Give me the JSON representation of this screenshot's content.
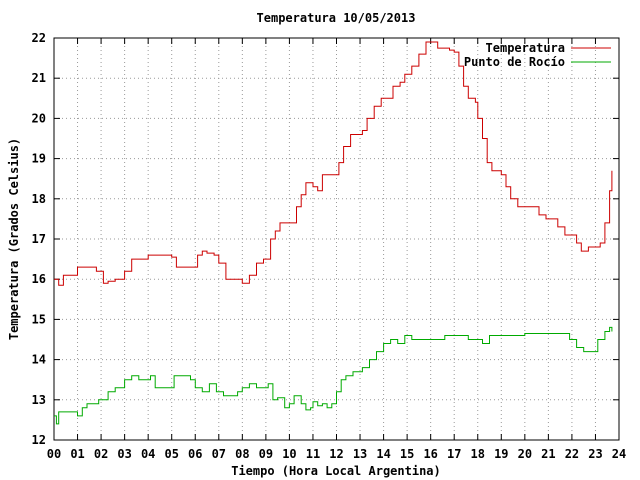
{
  "chart_data": {
    "type": "line",
    "title": "Temperatura 10/05/2013",
    "xlabel": "Tiempo (Hora Local Argentina)",
    "ylabel": "Temperatura (Grados Celsius)",
    "xlim": [
      0,
      24
    ],
    "ylim": [
      12,
      22
    ],
    "x_ticks": [
      "00",
      "01",
      "02",
      "03",
      "04",
      "05",
      "06",
      "07",
      "08",
      "09",
      "10",
      "11",
      "12",
      "13",
      "14",
      "15",
      "16",
      "17",
      "18",
      "19",
      "20",
      "21",
      "22",
      "23",
      "24"
    ],
    "y_ticks": [
      "12",
      "13",
      "14",
      "15",
      "16",
      "17",
      "18",
      "19",
      "20",
      "21",
      "22"
    ],
    "grid": true,
    "legend_position": "top-right",
    "series": [
      {
        "name": "Temperatura",
        "color": "#cc0000",
        "points": [
          [
            0.0,
            16.0
          ],
          [
            0.2,
            15.85
          ],
          [
            0.4,
            16.1
          ],
          [
            0.7,
            16.1
          ],
          [
            1.0,
            16.3
          ],
          [
            1.4,
            16.3
          ],
          [
            1.8,
            16.2
          ],
          [
            2.1,
            15.9
          ],
          [
            2.3,
            15.95
          ],
          [
            2.6,
            16.0
          ],
          [
            3.0,
            16.2
          ],
          [
            3.3,
            16.5
          ],
          [
            3.7,
            16.5
          ],
          [
            4.0,
            16.6
          ],
          [
            4.5,
            16.6
          ],
          [
            5.0,
            16.55
          ],
          [
            5.2,
            16.3
          ],
          [
            5.6,
            16.3
          ],
          [
            5.9,
            16.3
          ],
          [
            6.1,
            16.6
          ],
          [
            6.3,
            16.7
          ],
          [
            6.5,
            16.65
          ],
          [
            6.8,
            16.6
          ],
          [
            7.0,
            16.4
          ],
          [
            7.3,
            16.0
          ],
          [
            7.7,
            16.0
          ],
          [
            8.0,
            15.9
          ],
          [
            8.3,
            16.1
          ],
          [
            8.6,
            16.4
          ],
          [
            8.9,
            16.5
          ],
          [
            9.2,
            17.0
          ],
          [
            9.4,
            17.2
          ],
          [
            9.6,
            17.4
          ],
          [
            10.0,
            17.4
          ],
          [
            10.3,
            17.8
          ],
          [
            10.5,
            18.1
          ],
          [
            10.7,
            18.4
          ],
          [
            11.0,
            18.3
          ],
          [
            11.2,
            18.2
          ],
          [
            11.4,
            18.6
          ],
          [
            11.7,
            18.6
          ],
          [
            11.9,
            18.6
          ],
          [
            12.1,
            18.9
          ],
          [
            12.3,
            19.3
          ],
          [
            12.6,
            19.6
          ],
          [
            12.9,
            19.6
          ],
          [
            13.1,
            19.7
          ],
          [
            13.3,
            20.0
          ],
          [
            13.6,
            20.3
          ],
          [
            13.9,
            20.5
          ],
          [
            14.2,
            20.5
          ],
          [
            14.4,
            20.8
          ],
          [
            14.7,
            20.9
          ],
          [
            14.9,
            21.1
          ],
          [
            15.2,
            21.3
          ],
          [
            15.5,
            21.6
          ],
          [
            15.8,
            21.9
          ],
          [
            16.1,
            21.9
          ],
          [
            16.3,
            21.75
          ],
          [
            16.5,
            21.75
          ],
          [
            16.8,
            21.7
          ],
          [
            17.0,
            21.65
          ],
          [
            17.2,
            21.3
          ],
          [
            17.4,
            20.8
          ],
          [
            17.6,
            20.5
          ],
          [
            17.9,
            20.4
          ],
          [
            18.0,
            20.0
          ],
          [
            18.2,
            19.5
          ],
          [
            18.4,
            18.9
          ],
          [
            18.6,
            18.7
          ],
          [
            19.0,
            18.6
          ],
          [
            19.2,
            18.3
          ],
          [
            19.4,
            18.0
          ],
          [
            19.7,
            17.8
          ],
          [
            20.0,
            17.8
          ],
          [
            20.3,
            17.8
          ],
          [
            20.6,
            17.6
          ],
          [
            20.9,
            17.5
          ],
          [
            21.1,
            17.5
          ],
          [
            21.4,
            17.3
          ],
          [
            21.7,
            17.1
          ],
          [
            22.0,
            17.1
          ],
          [
            22.2,
            16.9
          ],
          [
            22.4,
            16.7
          ],
          [
            22.7,
            16.8
          ],
          [
            22.9,
            16.8
          ],
          [
            23.2,
            16.9
          ],
          [
            23.4,
            17.4
          ],
          [
            23.6,
            18.2
          ],
          [
            23.7,
            18.7
          ]
        ]
      },
      {
        "name": "Punto de Rocío",
        "color": "#00aa00",
        "points": [
          [
            0.0,
            12.6
          ],
          [
            0.1,
            12.4
          ],
          [
            0.2,
            12.7
          ],
          [
            0.4,
            12.7
          ],
          [
            0.6,
            12.7
          ],
          [
            0.9,
            12.7
          ],
          [
            1.0,
            12.6
          ],
          [
            1.2,
            12.8
          ],
          [
            1.4,
            12.9
          ],
          [
            1.7,
            12.9
          ],
          [
            1.9,
            13.0
          ],
          [
            2.1,
            13.0
          ],
          [
            2.3,
            13.2
          ],
          [
            2.6,
            13.3
          ],
          [
            2.9,
            13.3
          ],
          [
            3.0,
            13.5
          ],
          [
            3.3,
            13.6
          ],
          [
            3.6,
            13.5
          ],
          [
            3.9,
            13.5
          ],
          [
            4.1,
            13.6
          ],
          [
            4.3,
            13.3
          ],
          [
            4.6,
            13.3
          ],
          [
            4.9,
            13.3
          ],
          [
            5.1,
            13.6
          ],
          [
            5.4,
            13.6
          ],
          [
            5.8,
            13.5
          ],
          [
            6.0,
            13.3
          ],
          [
            6.3,
            13.2
          ],
          [
            6.6,
            13.4
          ],
          [
            6.9,
            13.2
          ],
          [
            7.2,
            13.1
          ],
          [
            7.5,
            13.1
          ],
          [
            7.8,
            13.2
          ],
          [
            8.0,
            13.3
          ],
          [
            8.3,
            13.4
          ],
          [
            8.6,
            13.3
          ],
          [
            8.9,
            13.3
          ],
          [
            9.1,
            13.4
          ],
          [
            9.3,
            13.0
          ],
          [
            9.5,
            13.05
          ],
          [
            9.8,
            12.8
          ],
          [
            10.0,
            12.9
          ],
          [
            10.2,
            13.1
          ],
          [
            10.5,
            12.9
          ],
          [
            10.7,
            12.75
          ],
          [
            10.9,
            12.8
          ],
          [
            11.0,
            12.95
          ],
          [
            11.2,
            12.85
          ],
          [
            11.4,
            12.9
          ],
          [
            11.6,
            12.8
          ],
          [
            11.8,
            12.9
          ],
          [
            12.0,
            13.2
          ],
          [
            12.2,
            13.5
          ],
          [
            12.4,
            13.6
          ],
          [
            12.7,
            13.7
          ],
          [
            12.9,
            13.7
          ],
          [
            13.1,
            13.8
          ],
          [
            13.4,
            14.0
          ],
          [
            13.7,
            14.2
          ],
          [
            14.0,
            14.4
          ],
          [
            14.3,
            14.5
          ],
          [
            14.6,
            14.4
          ],
          [
            14.9,
            14.6
          ],
          [
            15.2,
            14.5
          ],
          [
            15.5,
            14.5
          ],
          [
            15.9,
            14.5
          ],
          [
            16.2,
            14.5
          ],
          [
            16.6,
            14.6
          ],
          [
            17.0,
            14.6
          ],
          [
            17.3,
            14.6
          ],
          [
            17.6,
            14.5
          ],
          [
            17.9,
            14.5
          ],
          [
            18.2,
            14.4
          ],
          [
            18.5,
            14.6
          ],
          [
            18.8,
            14.6
          ],
          [
            19.1,
            14.6
          ],
          [
            19.4,
            14.6
          ],
          [
            19.7,
            14.6
          ],
          [
            20.0,
            14.65
          ],
          [
            20.5,
            14.65
          ],
          [
            21.0,
            14.65
          ],
          [
            21.5,
            14.65
          ],
          [
            21.9,
            14.5
          ],
          [
            22.2,
            14.3
          ],
          [
            22.5,
            14.2
          ],
          [
            22.9,
            14.2
          ],
          [
            23.1,
            14.5
          ],
          [
            23.4,
            14.7
          ],
          [
            23.6,
            14.8
          ],
          [
            23.7,
            14.7
          ]
        ]
      }
    ]
  }
}
